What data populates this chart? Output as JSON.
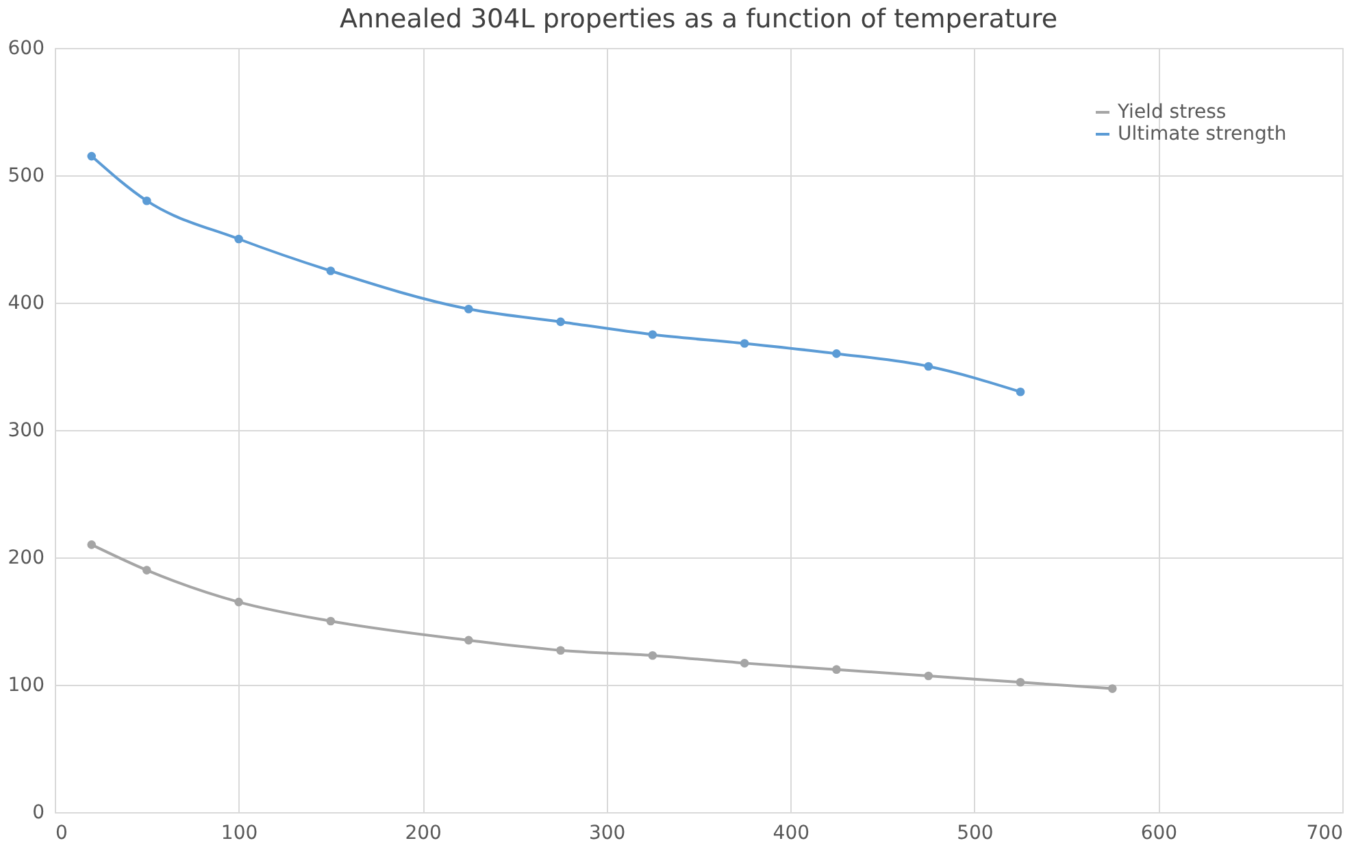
{
  "chart_data": {
    "type": "line",
    "title": "Annealed 304L properties as a function of temperature",
    "x": [
      20,
      50,
      100,
      150,
      225,
      275,
      325,
      375,
      425,
      475,
      525,
      575
    ],
    "series": [
      {
        "name": "Yield stress",
        "color": "#a5a5a5",
        "values": [
          210,
          190,
          165,
          150,
          135,
          127,
          123,
          117,
          112,
          107,
          102,
          97
        ]
      },
      {
        "name": "Ultimate strength",
        "color": "#5b9bd5",
        "values": [
          515,
          480,
          450,
          425,
          395,
          385,
          375,
          368,
          360,
          350,
          330,
          null
        ]
      }
    ],
    "xlim": [
      0,
      700
    ],
    "xticks": [
      0,
      100,
      200,
      300,
      400,
      500,
      600,
      700
    ],
    "ylim": [
      0,
      600
    ],
    "yticks": [
      0,
      100,
      200,
      300,
      400,
      500,
      600
    ],
    "grid": true,
    "legend": "top right",
    "marker": "circle",
    "line_style": "solid"
  }
}
